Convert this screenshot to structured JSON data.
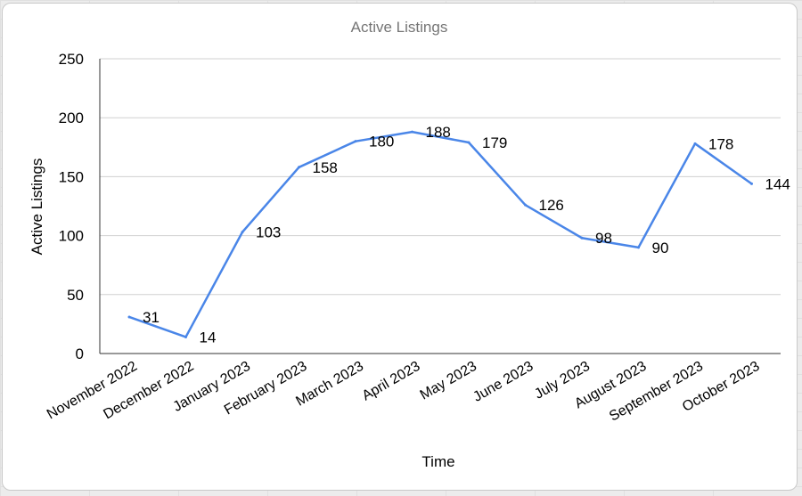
{
  "chart_data": {
    "type": "line",
    "title": "Active Listings",
    "xlabel": "Time",
    "ylabel": "Active Listings",
    "ylim": [
      0,
      250
    ],
    "yticks": [
      0,
      50,
      100,
      150,
      200,
      250
    ],
    "grid": true,
    "categories": [
      "November 2022",
      "December 2022",
      "January 2023",
      "February 2023",
      "March 2023",
      "April 2023",
      "May 2023",
      "June 2023",
      "July 2023",
      "August 2023",
      "September 2023",
      "October 2023"
    ],
    "series": [
      {
        "values": [
          31,
          14,
          103,
          158,
          180,
          188,
          179,
          126,
          98,
          90,
          178,
          144
        ],
        "color": "#4a86e8"
      }
    ]
  }
}
